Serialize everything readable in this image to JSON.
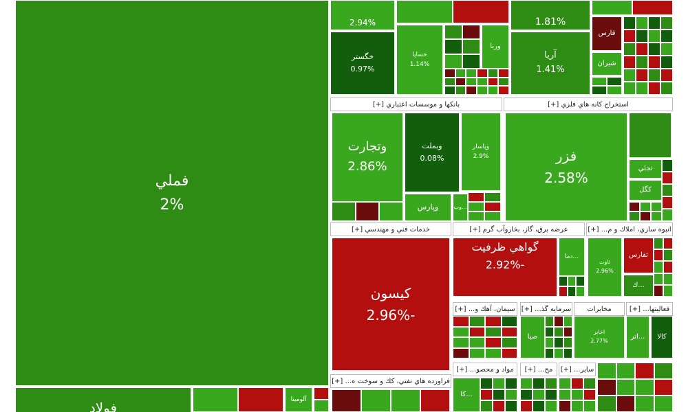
{
  "tiles": [
    {
      "label": "فملي",
      "change": "2%"
    },
    {
      "label": "فولاد"
    },
    {
      "label": "آلومينا"
    },
    {
      "change": "2.94%"
    },
    {
      "label": "خگستر",
      "change": "0.97%"
    },
    {
      "label": "خساپا",
      "change": "1.14%"
    },
    {
      "label": "ورنا"
    },
    {
      "change": "1.81%"
    },
    {
      "label": "آريا",
      "change": "1.41%"
    },
    {
      "label": "فارس"
    },
    {
      "label": "شيران"
    }
  ],
  "sectors": [
    {
      "title": "بانكها و موسسات اعتباري [+]",
      "tiles": [
        {
          "label": "وتجارت",
          "change": "2.86%"
        },
        {
          "label": "وبملت",
          "change": "0.08%"
        },
        {
          "label": "وپاسار",
          "change": "2.9%"
        },
        {
          "label": "وپارس"
        },
        {
          "label": "...وب"
        }
      ]
    },
    {
      "title": "استخراج كانه هاي فلزي [+]",
      "tiles": [
        {
          "label": "فزر",
          "change": "2.58%"
        },
        {
          "label": "تجلي"
        },
        {
          "label": "كگل"
        }
      ]
    },
    {
      "title": "خدمات فني و مهندسي [+]",
      "tiles": [
        {
          "label": "كيسون",
          "change": "-2.96%"
        }
      ]
    },
    {
      "title": "عرضه برق، گاز، بخاروآب گرم [+]",
      "tiles": [
        {
          "label": "گواهي ظرفيت",
          "change": "-2.92%"
        },
        {
          "label": "...دما"
        }
      ]
    },
    {
      "title": "انبوه سازي، املاك و م... [+]",
      "tiles": [
        {
          "label": "ثاوت",
          "change": "2.96%"
        },
        {
          "label": "ثفارس"
        },
        {
          "label": "...ك"
        }
      ]
    },
    {
      "title": "سيمان، آهك و... [+]"
    },
    {
      "title": "سرمايه گذ... [+]",
      "tiles": [
        {
          "label": "صبا"
        }
      ]
    },
    {
      "title": "مخابرات",
      "tiles": [
        {
          "label": "اخابر",
          "change": "2.77%"
        }
      ]
    },
    {
      "title": "فعاليتها... [+]",
      "tiles": [
        {
          "label": "كالا"
        },
        {
          "label": "...اتر"
        }
      ]
    },
    {
      "title": "فراورده هاي نفتي، كك و سوخت ه... [+]"
    },
    {
      "title": "مواد و محصو... [+]",
      "tiles": [
        {
          "label": "...كا"
        }
      ]
    },
    {
      "title": "مح... [+]"
    },
    {
      "title": "ساير... [+]"
    }
  ]
}
